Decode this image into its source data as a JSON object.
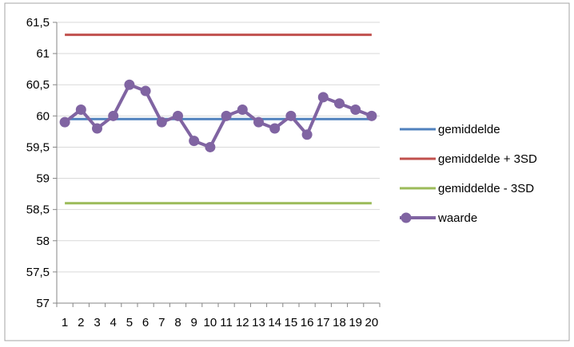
{
  "chart_data": {
    "type": "line",
    "title": "",
    "xlabel": "",
    "ylabel": "",
    "x": [
      1,
      2,
      3,
      4,
      5,
      6,
      7,
      8,
      9,
      10,
      11,
      12,
      13,
      14,
      15,
      16,
      17,
      18,
      19,
      20
    ],
    "x_tick_labels": [
      "1",
      "2",
      "3",
      "4",
      "5",
      "6",
      "7",
      "8",
      "9",
      "10",
      "11",
      "12",
      "13",
      "14",
      "15",
      "16",
      "17",
      "18",
      "19",
      "20"
    ],
    "ylim": [
      57,
      61.5
    ],
    "y_ticks": [
      57,
      57.5,
      58,
      58.5,
      59,
      59.5,
      60,
      60.5,
      61,
      61.5
    ],
    "y_tick_labels": [
      "57",
      "57,5",
      "58",
      "58,5",
      "59",
      "59,5",
      "60",
      "60,5",
      "61",
      "61,5"
    ],
    "grid": true,
    "legend_position": "right",
    "series": [
      {
        "name": "gemiddelde",
        "color": "#4f81bd",
        "markers": false,
        "values": [
          59.95,
          59.95,
          59.95,
          59.95,
          59.95,
          59.95,
          59.95,
          59.95,
          59.95,
          59.95,
          59.95,
          59.95,
          59.95,
          59.95,
          59.95,
          59.95,
          59.95,
          59.95,
          59.95,
          59.95
        ]
      },
      {
        "name": "gemiddelde + 3SD",
        "color": "#c0504d",
        "markers": false,
        "values": [
          61.3,
          61.3,
          61.3,
          61.3,
          61.3,
          61.3,
          61.3,
          61.3,
          61.3,
          61.3,
          61.3,
          61.3,
          61.3,
          61.3,
          61.3,
          61.3,
          61.3,
          61.3,
          61.3,
          61.3
        ]
      },
      {
        "name": "gemiddelde - 3SD",
        "color": "#9bbb59",
        "markers": false,
        "values": [
          58.6,
          58.6,
          58.6,
          58.6,
          58.6,
          58.6,
          58.6,
          58.6,
          58.6,
          58.6,
          58.6,
          58.6,
          58.6,
          58.6,
          58.6,
          58.6,
          58.6,
          58.6,
          58.6,
          58.6
        ]
      },
      {
        "name": "waarde",
        "color": "#8064a2",
        "markers": true,
        "values": [
          59.9,
          60.1,
          59.8,
          60.0,
          60.5,
          60.4,
          59.9,
          60.0,
          59.6,
          59.5,
          60.0,
          60.1,
          59.9,
          59.8,
          60.0,
          59.7,
          60.3,
          60.2,
          60.1,
          60.0
        ]
      }
    ]
  }
}
